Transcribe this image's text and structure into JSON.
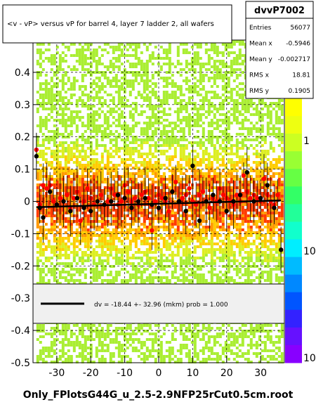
{
  "chart_data": {
    "type": "scatter",
    "title": "<v - vP>       versus   vP for barrel 4, layer 7 ladder 2, all wafers",
    "xlabel": "",
    "ylabel": "",
    "xlim": [
      -37,
      37
    ],
    "ylim": [
      -0.5,
      0.5
    ],
    "x_ticks": [
      -30,
      -20,
      -10,
      0,
      10,
      20,
      30
    ],
    "y_ticks": [
      -0.5,
      -0.4,
      -0.3,
      -0.2,
      -0.1,
      0,
      0.1,
      0.2,
      0.3,
      0.4
    ],
    "y_tick_labels": [
      "-0.5",
      "-0.4",
      "-0.3",
      "-0.2",
      "-0.1",
      "0",
      "0.1",
      "0.2",
      "0.3",
      "0.4"
    ],
    "grid": true,
    "colz_labels": [
      "1",
      "10",
      "10"
    ],
    "stats": {
      "name": "dvvP7002",
      "rows": [
        {
          "label": "Entries",
          "value": "56077"
        },
        {
          "label": "Mean x",
          "value": "-0.5946"
        },
        {
          "label": "Mean y",
          "value": "-0.002717"
        },
        {
          "label": "RMS x",
          "value": "18.81"
        },
        {
          "label": "RMS y",
          "value": "0.1905"
        }
      ]
    },
    "fit_legend": "dv =  -18.44 +- 32.96 (mkm) prob = 1.000",
    "fit_line": {
      "x": [
        -36,
        36
      ],
      "y": [
        -0.018,
        0.003
      ]
    },
    "series": [
      {
        "marker": "red-dots",
        "x": [
          -36,
          -35,
          -34,
          -33,
          -32,
          -31,
          -30,
          -29,
          -28,
          -27,
          -26,
          -25,
          -24,
          -23,
          -22,
          -21,
          -20,
          -19,
          -18,
          -17,
          -16,
          -15,
          -14,
          -13,
          -12,
          -11,
          -10,
          -9,
          -8,
          -7,
          -6,
          -5,
          -4,
          -3,
          -2,
          -1,
          0,
          1,
          2,
          3,
          4,
          5,
          6,
          7,
          8,
          9,
          10,
          11,
          12,
          13,
          14,
          15,
          16,
          17,
          18,
          19,
          20,
          21,
          22,
          23,
          24,
          25,
          26,
          27,
          28,
          29,
          30,
          31,
          32,
          33,
          34,
          35,
          36
        ],
        "y": [
          0.16,
          -0.01,
          0.05,
          0.04,
          0.05,
          0.0,
          -0.01,
          0.01,
          0.0,
          0.02,
          -0.02,
          0.01,
          0.03,
          -0.06,
          0.0,
          0.04,
          0.01,
          -0.01,
          0.0,
          0.02,
          -0.01,
          0.0,
          0.04,
          0.02,
          -0.01,
          0.0,
          0.05,
          0.03,
          0.0,
          0.01,
          -0.01,
          0.02,
          0.03,
          0.01,
          -0.09,
          0.0,
          0.02,
          0.01,
          0.0,
          -0.03,
          0.03,
          0.06,
          0.0,
          0.01,
          0.02,
          0.04,
          0.0,
          -0.01,
          0.02,
          0.03,
          0.0,
          -0.02,
          0.01,
          0.0,
          0.04,
          0.02,
          0.01,
          0.0,
          -0.01,
          0.02,
          0.0,
          0.08,
          0.03,
          0.01,
          0.02,
          0.01,
          0.0,
          0.07,
          0.02,
          0.0,
          -0.01,
          0.02,
          -0.15
        ]
      },
      {
        "marker": "black-dots",
        "x": [
          -36,
          -35,
          -34,
          -32,
          -30,
          -28,
          -26,
          -24,
          -22,
          -20,
          -18,
          -16,
          -14,
          -12,
          -10,
          -8,
          -6,
          -4,
          -2,
          0,
          2,
          4,
          6,
          8,
          10,
          12,
          14,
          16,
          18,
          20,
          22,
          24,
          26,
          28,
          30,
          32,
          34,
          36
        ],
        "y": [
          0.14,
          -0.02,
          -0.05,
          0.03,
          -0.01,
          0.0,
          -0.03,
          0.01,
          -0.02,
          -0.03,
          0.0,
          -0.01,
          0.0,
          0.02,
          0.01,
          -0.02,
          0.0,
          0.01,
          -0.01,
          -0.02,
          0.01,
          0.03,
          0.0,
          -0.03,
          0.11,
          -0.06,
          0.0,
          0.02,
          0.0,
          -0.03,
          0.0,
          0.02,
          0.09,
          0.0,
          0.01,
          0.05,
          -0.02,
          -0.15
        ]
      }
    ]
  },
  "footer": {
    "filename": "Only_FPlotsG44G_u_2.5-2.9NFP25rCut0.5cm.root"
  }
}
